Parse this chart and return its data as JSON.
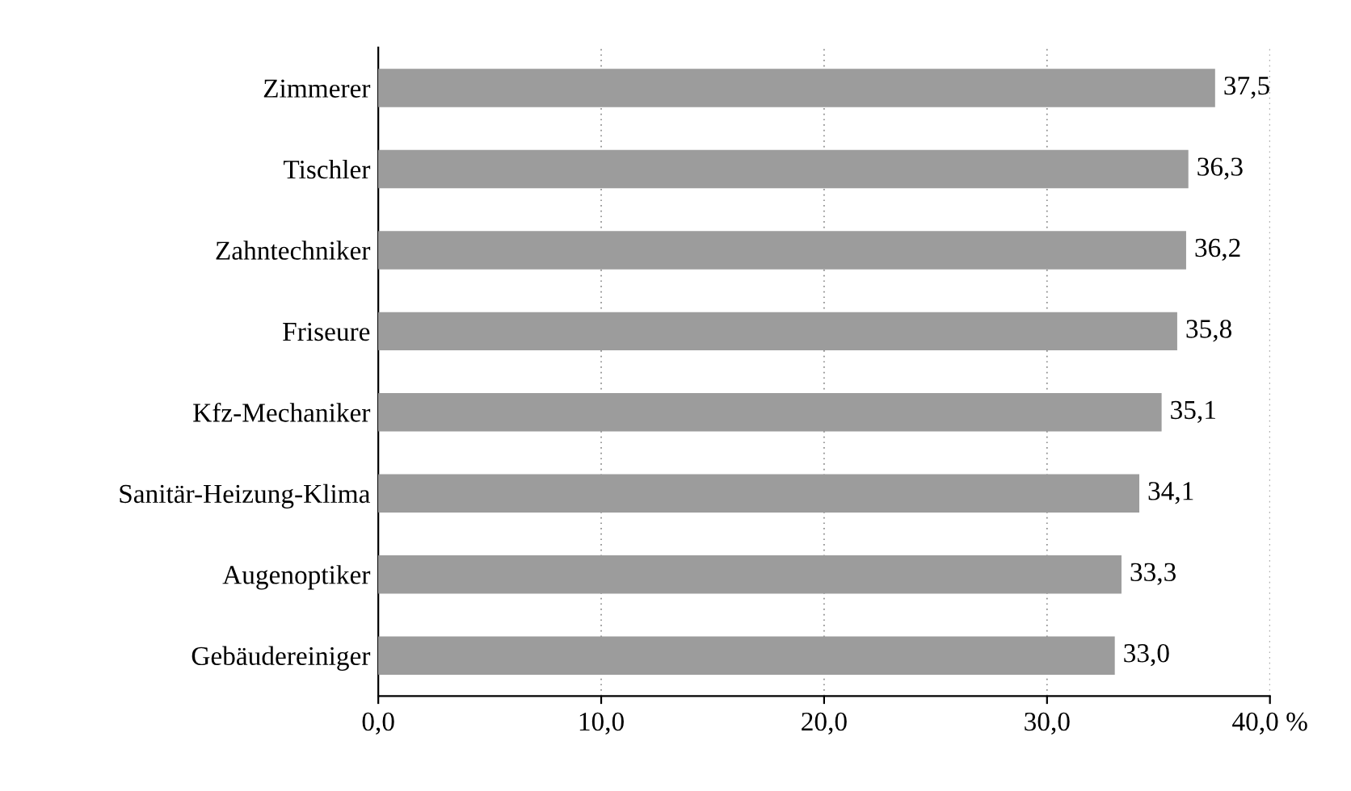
{
  "chart_data": {
    "type": "bar",
    "orientation": "horizontal",
    "categories": [
      "Zimmerer",
      "Tischler",
      "Zahntechniker",
      "Friseure",
      "Kfz-Mechaniker",
      "Sanitär-Heizung-Klima",
      "Augenoptiker",
      "Gebäudereiniger"
    ],
    "values": [
      37.5,
      36.3,
      36.2,
      35.8,
      35.1,
      34.1,
      33.3,
      33.0
    ],
    "value_labels": [
      "37,5",
      "36,3",
      "36,2",
      "35,8",
      "35,1",
      "34,1",
      "33,3",
      "33,0"
    ],
    "color": "#9c9c9c",
    "xlim": [
      0,
      40
    ],
    "xticks": [
      {
        "value": 0,
        "label": "0,0"
      },
      {
        "value": 10,
        "label": "10,0"
      },
      {
        "value": 20,
        "label": "20,0"
      },
      {
        "value": 30,
        "label": "30,0"
      },
      {
        "value": 40,
        "label": "40,0 %"
      }
    ],
    "grid": "x"
  }
}
